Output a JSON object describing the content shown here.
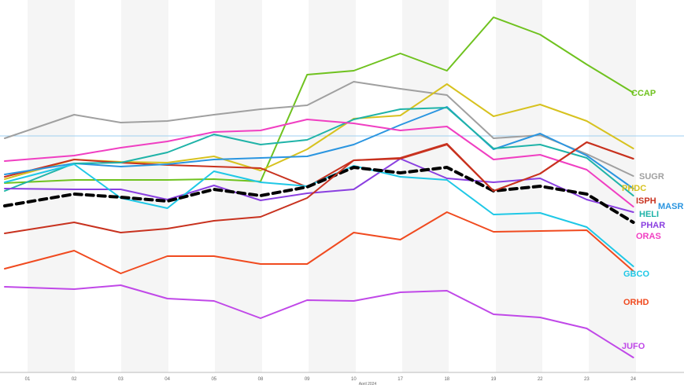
{
  "chart_data": {
    "type": "line",
    "x": [
      "01",
      "02",
      "03",
      "04",
      "05",
      "08",
      "09",
      "10",
      "17",
      "18",
      "19",
      "22",
      "23",
      "24"
    ],
    "x_ticks": [
      "01",
      "02",
      "03",
      "04",
      "05",
      "08",
      "09",
      "10",
      "17",
      "18",
      "19",
      "22",
      "23",
      "24"
    ],
    "xlabel": "April 2024",
    "title": "",
    "ylabel": "",
    "grid": "alternating vertical bands",
    "reference_line": {
      "value": 173,
      "color": "#9ecff0"
    },
    "series": [
      {
        "name": "CCAP",
        "color": "#6fc21f",
        "values": [
          233,
          229,
          229,
          229,
          228,
          231,
          95,
          90,
          68,
          90,
          22,
          44,
          82,
          118
        ]
      },
      {
        "name": "SUGR",
        "color": "#a0a0a0",
        "values": [
          176,
          146,
          156,
          154,
          146,
          139,
          134,
          104,
          113,
          121,
          176,
          172,
          196,
          224
        ]
      },
      {
        "name": "PHDC",
        "color": "#d7c21f",
        "values": [
          228,
          203,
          206,
          207,
          199,
          217,
          190,
          151,
          147,
          107,
          148,
          133,
          154,
          189
        ]
      },
      {
        "name": "ISPH",
        "color": "#c8321f",
        "values": [
          225,
          203,
          207,
          210,
          212,
          214,
          238,
          204,
          201,
          183,
          243,
          221,
          181,
          202
        ]
      },
      {
        "name": "MASR",
        "color": "#2a95e0",
        "values": [
          222,
          208,
          212,
          209,
          203,
          201,
          199,
          184,
          159,
          136,
          190,
          170,
          198,
          240
        ]
      },
      {
        "name": "HELI",
        "color": "#1fb3a8",
        "values": [
          243,
          208,
          207,
          194,
          171,
          184,
          178,
          152,
          139,
          137,
          189,
          184,
          201,
          249
        ]
      },
      {
        "name": "PHAR",
        "color": "#8a3fe0",
        "values": [
          240,
          241,
          241,
          254,
          236,
          255,
          246,
          241,
          202,
          227,
          232,
          227,
          254,
          270
        ]
      },
      {
        "name": "ORAS",
        "color": "#f03fc2",
        "values": [
          205,
          198,
          188,
          180,
          168,
          166,
          152,
          157,
          166,
          161,
          203,
          197,
          216,
          263
        ]
      },
      {
        "name": "GBCO",
        "color": "#1fc8e6",
        "values": [
          232,
          209,
          252,
          265,
          218,
          232,
          237,
          211,
          225,
          229,
          273,
          271,
          289,
          339
        ]
      },
      {
        "name": "ORHD",
        "color": "#f04a1f",
        "values": [
          342,
          319,
          348,
          326,
          326,
          336,
          336,
          296,
          305,
          270,
          295,
          294,
          293,
          345
        ]
      },
      {
        "name": "JUFO",
        "color": "#c048e8",
        "values": [
          365,
          368,
          363,
          380,
          383,
          405,
          382,
          383,
          372,
          370,
          400,
          404,
          418,
          455
        ]
      },
      {
        "name": "",
        "color": "#000000",
        "dashed": true,
        "values": [
          262,
          247,
          251,
          256,
          241,
          249,
          238,
          213,
          220,
          213,
          243,
          237,
          247,
          283
        ]
      },
      {
        "name": "",
        "color": "#c8321f",
        "values": [
          297,
          283,
          296,
          291,
          281,
          276,
          252,
          204,
          202,
          184,
          243,
          221,
          181,
          202
        ]
      }
    ],
    "labels": [
      {
        "text": "CCAP",
        "series": "CCAP",
        "value": 118
      },
      {
        "text": "SUGR",
        "series": "SUGR",
        "value": 224
      },
      {
        "text": "PHDC",
        "series": "PHDC",
        "value": 239
      },
      {
        "text": "ISPH",
        "series": "ISPH",
        "value": 255
      },
      {
        "text": "MASR",
        "series": "MASR",
        "value": 262
      },
      {
        "text": "HELI",
        "series": "HELI",
        "value": 272
      },
      {
        "text": "PHAR",
        "series": "PHAR",
        "value": 286
      },
      {
        "text": "ORAS",
        "series": "ORAS",
        "value": 300
      },
      {
        "text": "GBCO",
        "series": "GBCO",
        "value": 348
      },
      {
        "text": "ORHD",
        "series": "ORHD",
        "value": 384
      },
      {
        "text": "JUFO",
        "series": "JUFO",
        "value": 440
      }
    ]
  }
}
